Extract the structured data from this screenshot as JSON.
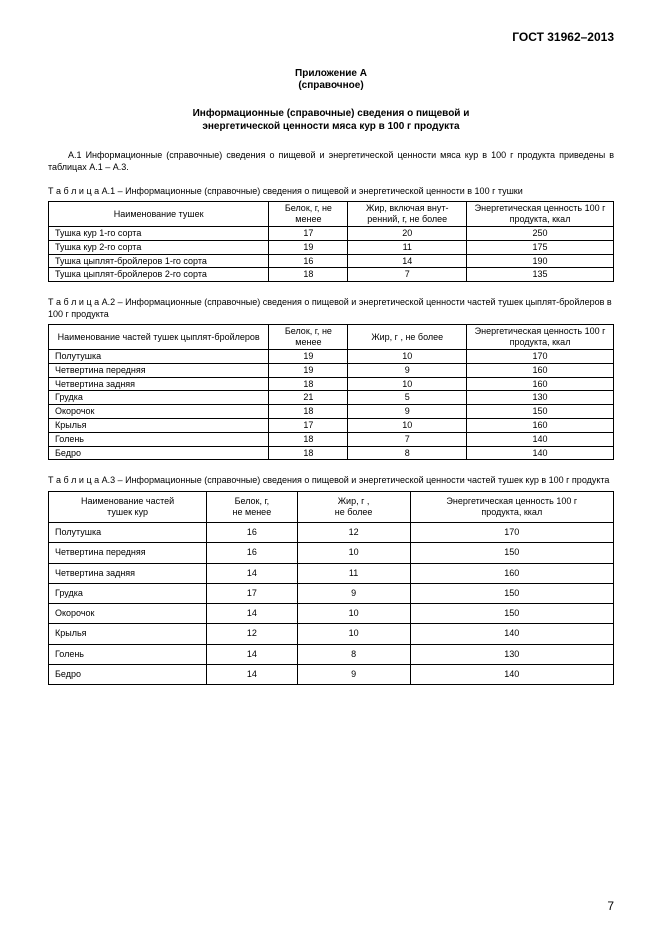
{
  "doc_code": "ГОСТ 31962–2013",
  "appendix": {
    "title": "Приложение А",
    "subtitle": "(справочное)"
  },
  "main_title_l1": "Информационные (справочные) сведения о пищевой и",
  "main_title_l2": "энергетической ценности мяса кур в 100 г продукта",
  "intro_text": "А.1 Информационные (справочные) сведения о пищевой и энергетической ценности мяса кур в 100 г продукта приведены в таблицах А.1 – А.3.",
  "table1": {
    "caption": "Т а б л и ц а А.1 – Информационные (справочные) сведения о  пищевой и энергетической ценности в 100 г тушки",
    "headers": [
      "Наименование тушек",
      "Белок, г, не менее",
      "Жир, включая внут-ренний, г, не более",
      "Энергетическая ценность 100 г продукта, ккал"
    ],
    "rows": [
      [
        "Тушка кур 1-го сорта",
        "17",
        "20",
        "250"
      ],
      [
        "Тушка кур 2-го сорта",
        "19",
        "11",
        "175"
      ],
      [
        "Тушка цыплят-бройлеров 1-го сорта",
        "16",
        "14",
        "190"
      ],
      [
        "Тушка цыплят-бройлеров 2-го сорта",
        "18",
        "7",
        "135"
      ]
    ],
    "col_widths": [
      "39%",
      "14%",
      "21%",
      "26%"
    ]
  },
  "table2": {
    "caption": "Т а б л и ц а А.2 – Информационные (справочные) сведения о пищевой и энергетической ценности частей тушек цыплят-бройлеров в 100 г продукта",
    "headers": [
      "Наименование частей тушек цыплят-бройлеров",
      "Белок, г, не менее",
      "Жир, г , не более",
      "Энергетическая ценность 100 г продукта, ккал"
    ],
    "rows": [
      [
        "Полутушка",
        "19",
        "10",
        "170"
      ],
      [
        "Четвертина передняя",
        "19",
        "9",
        "160"
      ],
      [
        "Четвертина задняя",
        "18",
        "10",
        "160"
      ],
      [
        "Грудка",
        "21",
        "5",
        "130"
      ],
      [
        "Окорочок",
        "18",
        "9",
        "150"
      ],
      [
        "Крылья",
        "17",
        "10",
        "160"
      ],
      [
        "Голень",
        "18",
        "7",
        "140"
      ],
      [
        "Бедро",
        "18",
        "8",
        "140"
      ]
    ],
    "col_widths": [
      "39%",
      "14%",
      "21%",
      "26%"
    ]
  },
  "table3": {
    "caption": "Т а б л и ц а А.3 – Информационные (справочные) сведения о пищевой и энергетической ценности частей тушек кур в 100 г продукта",
    "header_lines": {
      "c1a": "Наименование частей",
      "c1b": "тушек кур",
      "c2a": "Белок, г,",
      "c2b": "не менее",
      "c3a": "Жир, г ,",
      "c3b": "не более",
      "c4a": "Энергетическая ценность 100 г",
      "c4b": "продукта, ккал"
    },
    "rows": [
      [
        "Полутушка",
        "16",
        "12",
        "170"
      ],
      [
        "Четвертина передняя",
        "16",
        "10",
        "150"
      ],
      [
        "Четвертина задняя",
        "14",
        "11",
        "160"
      ],
      [
        "Грудка",
        "17",
        "9",
        "150"
      ],
      [
        "Окорочок",
        "14",
        "10",
        "150"
      ],
      [
        "Крылья",
        "12",
        "10",
        "140"
      ],
      [
        "Голень",
        "14",
        "8",
        "130"
      ],
      [
        "Бедро",
        "14",
        "9",
        "140"
      ]
    ],
    "col_widths": [
      "28%",
      "16%",
      "20%",
      "36%"
    ]
  },
  "page_number": "7"
}
